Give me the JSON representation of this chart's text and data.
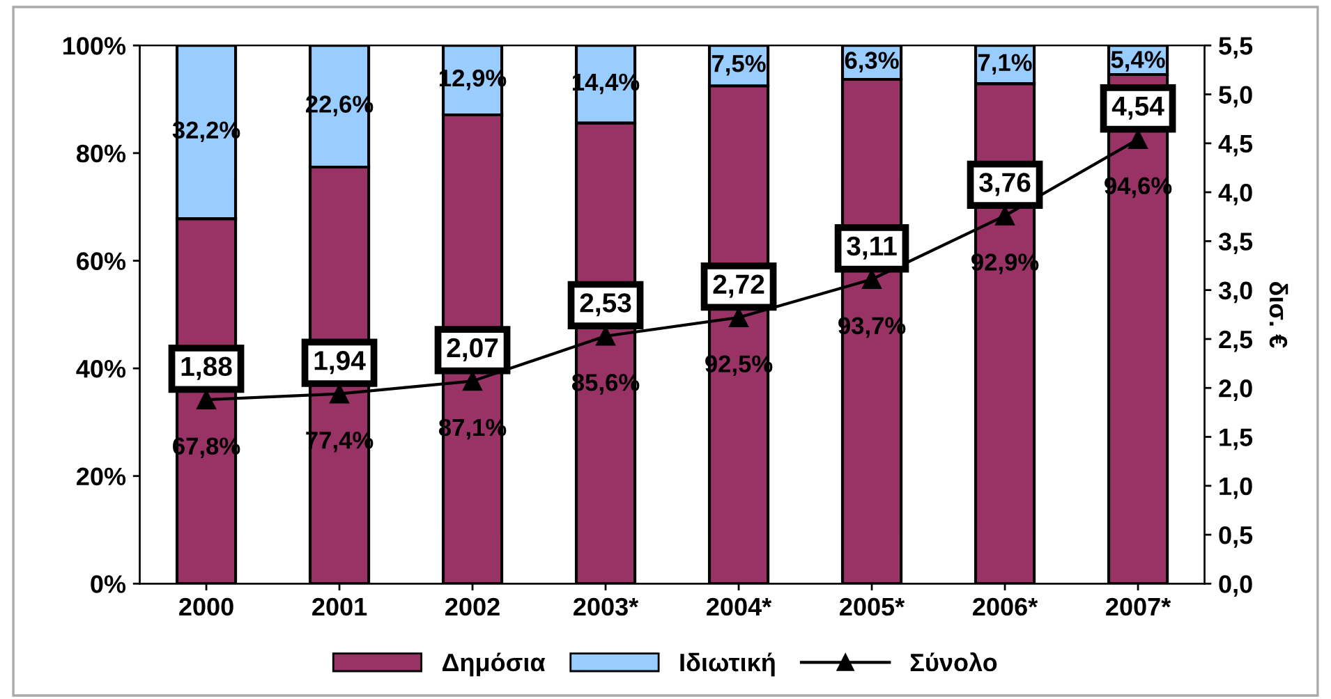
{
  "chart_data": {
    "type": "bar",
    "stacked": true,
    "categories": [
      "2000",
      "2001",
      "2002",
      "2003*",
      "2004*",
      "2005*",
      "2006*",
      "2007*"
    ],
    "series": [
      {
        "name": "Δημόσια",
        "color": "#993366",
        "values": [
          67.8,
          77.4,
          87.1,
          85.6,
          92.5,
          93.7,
          92.9,
          94.6
        ],
        "value_labels": [
          "67,8%",
          "77,4%",
          "87,1%",
          "85,6%",
          "92,5%",
          "93,7%",
          "92,9%",
          "94,6%"
        ]
      },
      {
        "name": "Ιδιωτική",
        "color": "#99ccff",
        "values": [
          32.2,
          22.6,
          12.9,
          14.4,
          7.5,
          6.3,
          7.1,
          5.4
        ],
        "value_labels": [
          "32,2%",
          "22,6%",
          "12,9%",
          "14,4%",
          "7,5%",
          "6,3%",
          "7,1%",
          "5,4%"
        ]
      },
      {
        "name": "Σύνολο",
        "type": "line",
        "axis": "y2",
        "color": "#000000",
        "marker": "triangle",
        "values": [
          1.88,
          1.94,
          2.07,
          2.53,
          2.72,
          3.11,
          3.76,
          4.54
        ],
        "value_labels": [
          "1,88",
          "1,94",
          "2,07",
          "2,53",
          "2,72",
          "3,11",
          "3,76",
          "4,54"
        ]
      }
    ],
    "ylim": [
      0,
      100
    ],
    "yticks": [
      {
        "value": 0,
        "label": "0%"
      },
      {
        "value": 20,
        "label": "20%"
      },
      {
        "value": 40,
        "label": "40%"
      },
      {
        "value": 60,
        "label": "60%"
      },
      {
        "value": 80,
        "label": "80%"
      },
      {
        "value": 100,
        "label": "100%"
      }
    ],
    "y2lim": [
      0,
      5.5
    ],
    "y2ticks": [
      {
        "value": 0,
        "label": "0,0"
      },
      {
        "value": 0.5,
        "label": "0,5"
      },
      {
        "value": 1,
        "label": "1,0"
      },
      {
        "value": 1.5,
        "label": "1,5"
      },
      {
        "value": 2,
        "label": "2,0"
      },
      {
        "value": 2.5,
        "label": "2,5"
      },
      {
        "value": 3,
        "label": "3,0"
      },
      {
        "value": 3.5,
        "label": "3,5"
      },
      {
        "value": 4,
        "label": "4,0"
      },
      {
        "value": 4.5,
        "label": "4,5"
      },
      {
        "value": 5,
        "label": "5,0"
      },
      {
        "value": 5.5,
        "label": "5,5"
      }
    ],
    "y2label": "δισ. €",
    "legend": "bottom",
    "grid": false
  }
}
